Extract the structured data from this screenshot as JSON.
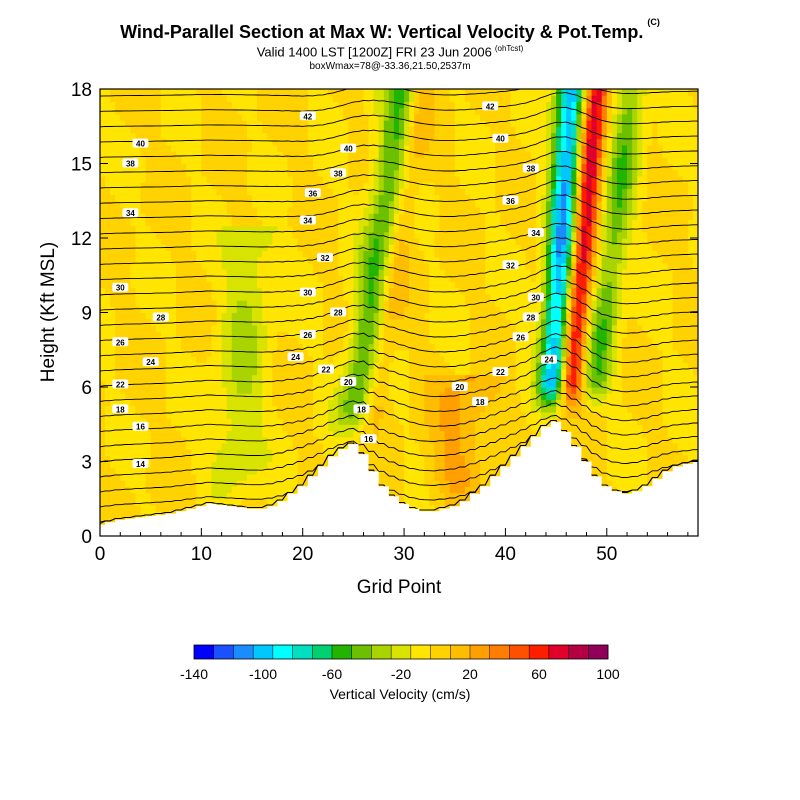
{
  "header": {
    "title": "Wind-Parallel Section at Max W: Vertical Velocity & Pot.Temp.",
    "copyright": "(C)",
    "valid_line": "Valid 1400 LST [1200Z] FRI 23 Jun 2006",
    "valid_tag": "(ohTcst)",
    "box_line": "boxWmax=78@-33.36,21.50,2537m"
  },
  "colors": {
    "scale": [
      "#0000ff",
      "#1a50ff",
      "#1a8cff",
      "#00c8ff",
      "#00ffff",
      "#00e0c0",
      "#00d070",
      "#22b500",
      "#6cc000",
      "#aad400",
      "#d8e400",
      "#ffe500",
      "#ffd200",
      "#ffbd00",
      "#ffa000",
      "#ff7d00",
      "#ff5000",
      "#ff1d00",
      "#e0002a",
      "#b40042",
      "#90005a"
    ],
    "terrain": "#ffffff",
    "background_field": "#ffd700"
  },
  "chart_data": {
    "type": "heatmap",
    "title": "Wind-Parallel Section at Max W: Vertical Velocity & Pot.Temp.",
    "xlabel": "Grid Point",
    "ylabel": "Height (Kft MSL)",
    "xlim": [
      0,
      59
    ],
    "ylim": [
      0,
      18
    ],
    "xticks": [
      0,
      10,
      20,
      30,
      40,
      50
    ],
    "yticks": [
      0,
      3,
      6,
      9,
      12,
      15,
      18
    ],
    "colorbar": {
      "label": "Vertical Velocity (cm/s)",
      "min": -140,
      "max": 100,
      "step": 12,
      "tick_values": [
        -140,
        -100,
        -60,
        -20,
        20,
        60,
        100
      ]
    },
    "terrain_height_kft": [
      0.45,
      0.55,
      0.65,
      0.7,
      0.75,
      0.8,
      0.85,
      0.9,
      1.0,
      1.1,
      1.2,
      1.3,
      1.25,
      1.2,
      1.15,
      1.1,
      1.1,
      1.2,
      1.4,
      1.7,
      2.0,
      2.4,
      2.8,
      3.2,
      3.5,
      3.7,
      3.3,
      2.6,
      2.0,
      1.6,
      1.3,
      1.1,
      1.0,
      1.0,
      1.1,
      1.2,
      1.4,
      1.7,
      2.0,
      2.4,
      2.8,
      3.2,
      3.6,
      4.0,
      4.4,
      4.6,
      4.2,
      3.6,
      3.0,
      2.4,
      2.0,
      1.8,
      1.7,
      1.8,
      2.0,
      2.3,
      2.6,
      2.8,
      2.9,
      3.0
    ],
    "vertical_velocity_features": [
      {
        "x_base": 25,
        "x_top": 30,
        "z_base": 4.0,
        "z_top": 18,
        "w_peak": -55,
        "width": 1.8
      },
      {
        "x_base": 26.5,
        "x_top": 31.5,
        "z_base": 4.0,
        "z_top": 18,
        "w_peak": 30,
        "width": 1.4
      },
      {
        "x_base": 44.5,
        "x_top": 46.5,
        "z_base": 5.0,
        "z_top": 18,
        "w_peak": -110,
        "width": 1.4
      },
      {
        "x_base": 46.2,
        "x_top": 49.0,
        "z_base": 5.0,
        "z_top": 18,
        "w_peak": 85,
        "width": 1.2
      },
      {
        "x_base": 48.5,
        "x_top": 52.5,
        "z_base": 5.0,
        "z_top": 18,
        "w_peak": -45,
        "width": 1.5
      },
      {
        "x_base": 13,
        "x_top": 15,
        "z_base": 1.5,
        "z_top": 12,
        "w_peak": -25,
        "width": 2.5
      },
      {
        "x_base": 35,
        "x_top": 36,
        "z_base": 1.0,
        "z_top": 6,
        "w_peak": 25,
        "width": 3.0
      }
    ],
    "theta_contour_labels": [
      {
        "x": 20.5,
        "z": 16.9,
        "text": "42"
      },
      {
        "x": 38.5,
        "z": 17.3,
        "text": "42"
      },
      {
        "x": 4,
        "z": 15.8,
        "text": "40"
      },
      {
        "x": 24.5,
        "z": 15.6,
        "text": "40"
      },
      {
        "x": 39.5,
        "z": 16.0,
        "text": "40"
      },
      {
        "x": 3,
        "z": 15.0,
        "text": "38"
      },
      {
        "x": 23.5,
        "z": 14.6,
        "text": "38"
      },
      {
        "x": 42.5,
        "z": 14.8,
        "text": "38"
      },
      {
        "x": 21,
        "z": 13.8,
        "text": "36"
      },
      {
        "x": 40.5,
        "z": 13.5,
        "text": "36"
      },
      {
        "x": 3,
        "z": 13.0,
        "text": "34"
      },
      {
        "x": 20.5,
        "z": 12.7,
        "text": "34"
      },
      {
        "x": 43,
        "z": 12.2,
        "text": "34"
      },
      {
        "x": 22.2,
        "z": 11.2,
        "text": "32"
      },
      {
        "x": 40.5,
        "z": 10.9,
        "text": "32"
      },
      {
        "x": 2,
        "z": 10.0,
        "text": "30"
      },
      {
        "x": 20.5,
        "z": 9.8,
        "text": "30"
      },
      {
        "x": 43,
        "z": 9.6,
        "text": "30"
      },
      {
        "x": 6,
        "z": 8.8,
        "text": "28"
      },
      {
        "x": 23.5,
        "z": 9.0,
        "text": "28"
      },
      {
        "x": 42.5,
        "z": 8.8,
        "text": "28"
      },
      {
        "x": 2,
        "z": 7.8,
        "text": "26"
      },
      {
        "x": 20.5,
        "z": 8.1,
        "text": "26"
      },
      {
        "x": 41.5,
        "z": 8.0,
        "text": "26"
      },
      {
        "x": 5,
        "z": 7.0,
        "text": "24"
      },
      {
        "x": 19.3,
        "z": 7.2,
        "text": "24"
      },
      {
        "x": 44.3,
        "z": 7.1,
        "text": "24"
      },
      {
        "x": 2,
        "z": 6.1,
        "text": "22"
      },
      {
        "x": 22.3,
        "z": 6.7,
        "text": "22"
      },
      {
        "x": 39.5,
        "z": 6.6,
        "text": "22"
      },
      {
        "x": 24.5,
        "z": 6.2,
        "text": "20"
      },
      {
        "x": 35.5,
        "z": 6.0,
        "text": "20"
      },
      {
        "x": 2,
        "z": 5.1,
        "text": "18"
      },
      {
        "x": 25.8,
        "z": 5.1,
        "text": "18"
      },
      {
        "x": 37.5,
        "z": 5.4,
        "text": "18"
      },
      {
        "x": 4,
        "z": 4.4,
        "text": "16"
      },
      {
        "x": 26.5,
        "z": 3.9,
        "text": "16"
      },
      {
        "x": 4,
        "z": 2.9,
        "text": "14"
      }
    ]
  }
}
